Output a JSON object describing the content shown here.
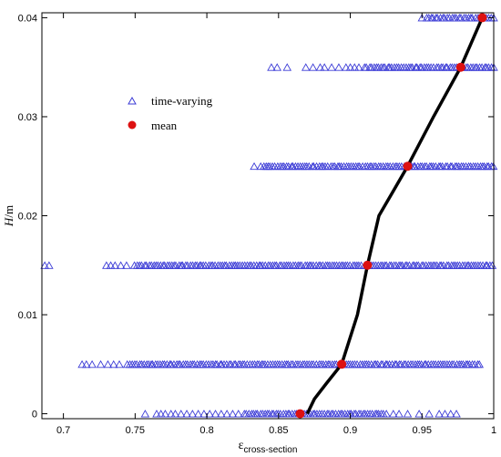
{
  "chart_data": {
    "type": "scatter",
    "xlabel": "ε",
    "xlabel_sub": "cross-section",
    "ylabel_italic": "H",
    "ylabel_unit": "/m",
    "xlim": [
      0.685,
      1.0
    ],
    "ylim": [
      -0.0005,
      0.0405
    ],
    "xticks": [
      0.7,
      0.75,
      0.8,
      0.85,
      0.9,
      0.95,
      1
    ],
    "xtick_labels": [
      "0.7",
      "0.75",
      "0.8",
      "0.85",
      "0.9",
      "0.95",
      "1"
    ],
    "yticks": [
      0,
      0.01,
      0.02,
      0.03,
      0.04
    ],
    "ytick_labels": [
      "0",
      "0.01",
      "0.02",
      "0.03",
      "0.04"
    ],
    "grid": false,
    "legend_position": "center-left",
    "series": [
      {
        "name": "time-varying",
        "marker": "open-triangle",
        "color": "#3b3bd6",
        "levels": [
          {
            "y": 0.0,
            "x_min": 0.757,
            "x_max": 0.975,
            "dense_min": 0.826,
            "dense_max": 0.925,
            "x": [
              0.757,
              0.765,
              0.768,
              0.771,
              0.775,
              0.778,
              0.782,
              0.786,
              0.79,
              0.794,
              0.798,
              0.802,
              0.806,
              0.81,
              0.814,
              0.818,
              0.822,
              0.93,
              0.934,
              0.94,
              0.948,
              0.955,
              0.962,
              0.966,
              0.97,
              0.974
            ]
          },
          {
            "y": 0.005,
            "x_min": 0.713,
            "x_max": 0.99,
            "dense_min": 0.745,
            "dense_max": 0.99,
            "x": [
              0.713,
              0.716,
              0.72,
              0.726,
              0.731,
              0.735,
              0.739
            ]
          },
          {
            "y": 0.015,
            "x_min": 0.687,
            "x_max": 0.999,
            "dense_min": 0.75,
            "dense_max": 0.999,
            "x": [
              0.687,
              0.69,
              0.73,
              0.733,
              0.736,
              0.74,
              0.744
            ]
          },
          {
            "y": 0.025,
            "x_min": 0.833,
            "x_max": 1.0,
            "dense_min": 0.838,
            "dense_max": 1.0,
            "x": [
              0.833
            ]
          },
          {
            "y": 0.035,
            "x_min": 0.845,
            "x_max": 1.0,
            "dense_min": 0.91,
            "dense_max": 1.0,
            "x": [
              0.845,
              0.849,
              0.856,
              0.869,
              0.874,
              0.879,
              0.882,
              0.887,
              0.892,
              0.897,
              0.9,
              0.903,
              0.906
            ]
          },
          {
            "y": 0.04,
            "x_min": 0.95,
            "x_max": 1.0,
            "dense_min": 0.953,
            "dense_max": 1.0,
            "x": [
              0.95
            ]
          }
        ]
      },
      {
        "name": "mean",
        "marker": "filled-circle",
        "color": "#dd1111",
        "x": [
          0.865,
          0.894,
          0.912,
          0.94,
          0.977,
          0.992
        ],
        "y": [
          0.0,
          0.005,
          0.015,
          0.025,
          0.035,
          0.04
        ]
      }
    ],
    "profile_curve": {
      "color": "#000000",
      "x": [
        0.87,
        0.875,
        0.883,
        0.894,
        0.905,
        0.912,
        0.92,
        0.93,
        0.94,
        0.958,
        0.977,
        0.992
      ],
      "y": [
        0.0,
        0.0015,
        0.003,
        0.005,
        0.01,
        0.015,
        0.02,
        0.0225,
        0.025,
        0.03,
        0.035,
        0.04
      ]
    }
  }
}
